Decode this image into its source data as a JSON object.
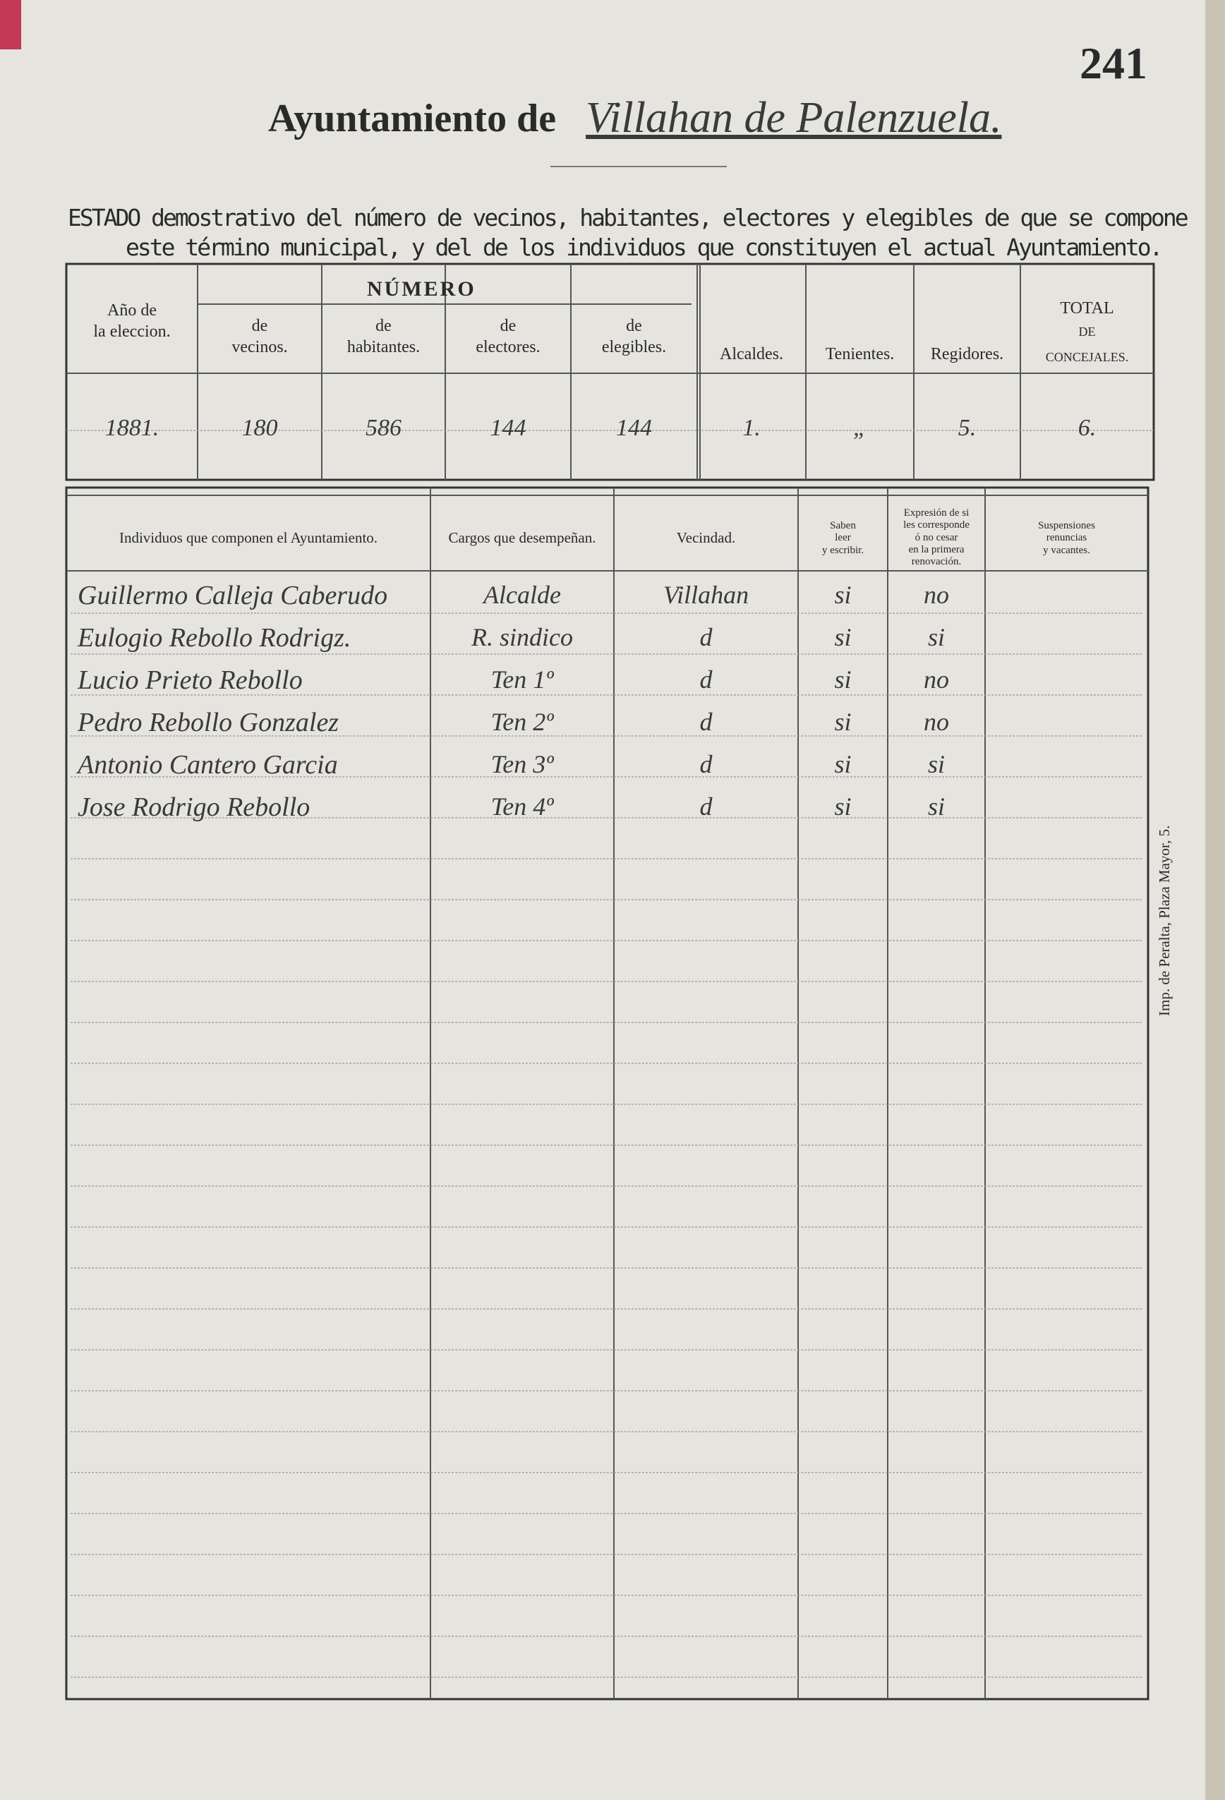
{
  "page_number": "241",
  "header": {
    "title": "Ayuntamiento de",
    "municipality": "Villahan de Palenzuela."
  },
  "statement": {
    "line1": "ESTADO demostrativo del número de vecinos, habitantes, electores y elegibles de que se compone",
    "line2": "este término municipal, y del de los individuos que constituyen el actual Ayuntamiento."
  },
  "census_table": {
    "group_header": "NÚMERO",
    "headers": [
      [
        "Año de",
        "la eleccion."
      ],
      [
        "de",
        "vecinos."
      ],
      [
        "de",
        "habitantes."
      ],
      [
        "de",
        "electores."
      ],
      [
        "de",
        "elegibles."
      ],
      [
        "Alcaldes."
      ],
      [
        "Tenientes."
      ],
      [
        "Regidores."
      ],
      [
        "TOTAL",
        "DE",
        "CONCEJALES."
      ]
    ],
    "row": [
      "1881.",
      "180",
      "586",
      "144",
      "144",
      "1.",
      "„",
      "5.",
      "6."
    ]
  },
  "members_table": {
    "headers": [
      [
        "Individuos que componen el Ayuntamiento."
      ],
      [
        "Cargos que desempeñan."
      ],
      [
        "Vecindad."
      ],
      [
        "Saben",
        "leer",
        "y escribir."
      ],
      [
        "Expresión de si",
        "les corresponde",
        "ó no cesar",
        "en la primera",
        "renovación."
      ],
      [
        "Suspensiones",
        "renuncias",
        "y vacantes."
      ]
    ],
    "rows": [
      [
        "Guillermo Calleja Caberudo",
        "Alcalde",
        "Villahan",
        "si",
        "no"
      ],
      [
        "Eulogio Rebollo Rodrigz.",
        "R. sindico",
        "d",
        "si",
        "si"
      ],
      [
        "Lucio Prieto Rebollo",
        "Ten 1º",
        "d",
        "si",
        "no"
      ],
      [
        "Pedro Rebollo Gonzalez",
        "Ten 2º",
        "d",
        "si",
        "no"
      ],
      [
        "Antonio Cantero Garcia",
        "Ten 3º",
        "d",
        "si",
        "si"
      ],
      [
        "Jose Rodrigo Rebollo",
        "Ten 4º",
        "d",
        "si",
        "si"
      ]
    ]
  },
  "imprint": "Imp. de Peralta, Plaza Mayor, 5."
}
